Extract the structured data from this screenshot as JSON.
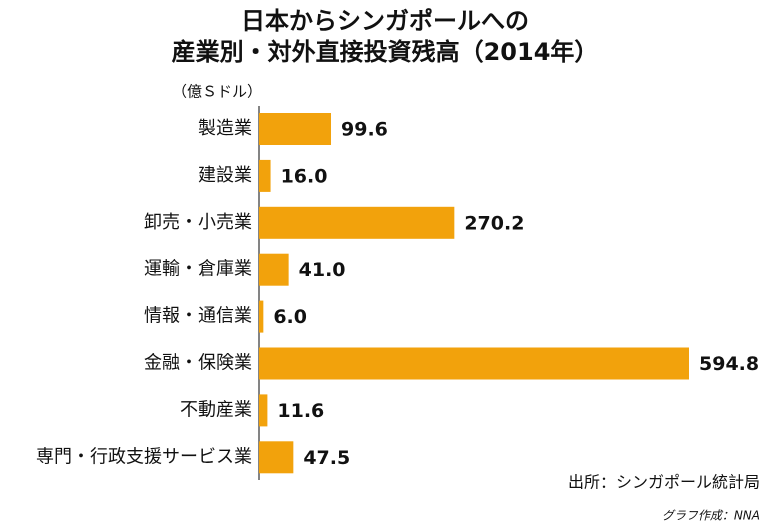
{
  "chart_data": {
    "type": "bar",
    "orientation": "horizontal",
    "title": [
      "日本からシンガポールへの",
      "産業別・対外直接投資残高（2014年）"
    ],
    "unit_label": "（億Ｓドル）",
    "categories": [
      "製造業",
      "建設業",
      "卸売・小売業",
      "運輸・倉庫業",
      "情報・通信業",
      "金融・保険業",
      "不動産業",
      "専門・行政支援サービス業"
    ],
    "values": [
      99.6,
      16.0,
      270.2,
      41.0,
      6.0,
      594.8,
      11.6,
      47.5
    ],
    "value_labels": [
      "99.6",
      "16.0",
      "270.2",
      "41.0",
      "6.0",
      "594.8",
      "11.6",
      "47.5"
    ],
    "color": "#f2a20c",
    "source": "出所：シンガポール統計局",
    "credit": "グラフ作成：NNA"
  }
}
